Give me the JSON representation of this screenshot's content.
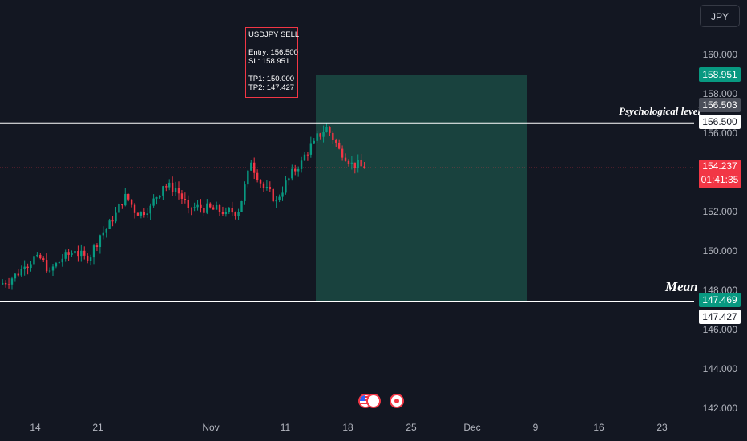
{
  "currency_button": "JPY",
  "annotation": {
    "title": "USDJPY SELL",
    "entry": "Entry: 156.500",
    "sl": "SL: 158.951",
    "tp1": "TP1: 150.000",
    "tp2": "TP2: 147.427"
  },
  "levels": {
    "psych_label": "Psychological level",
    "mean_label": "Mean"
  },
  "price_tags": {
    "stop": "158.951",
    "crosshair": "156.503",
    "psych": "156.500",
    "current": "154.237",
    "countdown": "01:41:35",
    "target_tp": "147.469",
    "mean": "147.427"
  },
  "colors": {
    "background": "#131722",
    "bull": "#089981",
    "bear": "#f23645",
    "zone": "#1b4a43",
    "level_line": "#ffffff"
  },
  "chart_data": {
    "type": "candlestick",
    "symbol": "USDJPY",
    "yaxis": {
      "ticks": [
        "160.000",
        "158.000",
        "156.000",
        "154.000",
        "152.000",
        "150.000",
        "148.000",
        "146.000",
        "144.000",
        "142.000"
      ],
      "ylim": [
        141.5,
        161.0
      ]
    },
    "xaxis": {
      "ticks": [
        "14",
        "21",
        "Nov",
        "11",
        "18",
        "25",
        "Dec",
        "9",
        "16",
        "23"
      ]
    },
    "horizontal_levels": [
      {
        "name": "Psychological level",
        "value": 156.5
      },
      {
        "name": "Mean",
        "value": 147.43
      }
    ],
    "trade_zone": {
      "entry": 156.5,
      "stop": 158.951,
      "target": 147.469
    },
    "current_price": 154.237,
    "close_path": [
      [
        "Oct 10",
        148.6
      ],
      [
        "Oct 11",
        149.2
      ],
      [
        "Oct 14",
        149.8
      ],
      [
        "Oct 15",
        149.0
      ],
      [
        "Oct 16",
        149.6
      ],
      [
        "Oct 17",
        150.0
      ],
      [
        "Oct 18",
        149.5
      ],
      [
        "Oct 21",
        150.8
      ],
      [
        "Oct 22",
        151.5
      ],
      [
        "Oct 23",
        152.9
      ],
      [
        "Oct 24",
        151.8
      ],
      [
        "Oct 25",
        152.3
      ],
      [
        "Oct 28",
        153.3
      ],
      [
        "Oct 29",
        153.2
      ],
      [
        "Oct 30",
        152.2
      ],
      [
        "Oct 31",
        152.2
      ],
      [
        "Nov 1",
        152.1
      ],
      [
        "Nov 4",
        152.0
      ],
      [
        "Nov 5",
        152.0
      ],
      [
        "Nov 6",
        154.5
      ],
      [
        "Nov 7",
        153.2
      ],
      [
        "Nov 8",
        152.6
      ],
      [
        "Nov 11",
        153.7
      ],
      [
        "Nov 12",
        154.6
      ],
      [
        "Nov 13",
        155.6
      ],
      [
        "Nov 14",
        156.3
      ],
      [
        "Nov 15",
        155.2
      ],
      [
        "Nov 18",
        154.5
      ],
      [
        "Nov 19",
        154.2
      ]
    ]
  }
}
